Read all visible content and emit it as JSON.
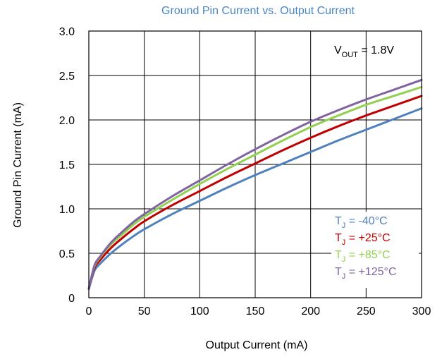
{
  "chart_data": {
    "type": "line",
    "title": "Ground Pin Current vs. Output Current",
    "xlabel": "Output Current (mA)",
    "ylabel": "Ground Pin Current (mA)",
    "xlim": [
      0,
      300
    ],
    "ylim": [
      0,
      3.0
    ],
    "x_ticks": [
      "0",
      "50",
      "100",
      "150",
      "200",
      "250",
      "300"
    ],
    "y_ticks": [
      "0",
      "0.5",
      "1.0",
      "1.5",
      "2.0",
      "2.5",
      "3.0"
    ],
    "grid": true,
    "annotation": {
      "main": "V",
      "sub": "OUT",
      "rest": " = 1.8V"
    },
    "legend_position": "bottom-right",
    "x": [
      0,
      5,
      10,
      20,
      30,
      40,
      50,
      75,
      100,
      125,
      150,
      175,
      200,
      225,
      250,
      275,
      300
    ],
    "series": [
      {
        "name": "T",
        "sub": "J",
        "label_rest": " = -40°C",
        "color": "#4f81bd",
        "values": [
          0.1,
          0.3,
          0.38,
          0.5,
          0.6,
          0.69,
          0.77,
          0.94,
          1.09,
          1.24,
          1.38,
          1.51,
          1.64,
          1.77,
          1.89,
          2.01,
          2.13
        ]
      },
      {
        "name": "T",
        "sub": "J",
        "label_rest": " = +25°C",
        "color": "#c00000",
        "values": [
          0.1,
          0.33,
          0.42,
          0.56,
          0.67,
          0.77,
          0.86,
          1.04,
          1.2,
          1.36,
          1.51,
          1.66,
          1.8,
          1.93,
          2.05,
          2.16,
          2.27
        ]
      },
      {
        "name": "T",
        "sub": "J",
        "label_rest": " = +85°C",
        "color": "#92d050",
        "values": [
          0.1,
          0.35,
          0.45,
          0.6,
          0.71,
          0.82,
          0.91,
          1.1,
          1.28,
          1.45,
          1.61,
          1.77,
          1.92,
          2.05,
          2.17,
          2.27,
          2.37
        ]
      },
      {
        "name": "T",
        "sub": "J",
        "label_rest": " = +125°C",
        "color": "#8064a2",
        "values": [
          0.1,
          0.36,
          0.46,
          0.62,
          0.74,
          0.85,
          0.94,
          1.14,
          1.32,
          1.5,
          1.67,
          1.83,
          1.98,
          2.11,
          2.23,
          2.34,
          2.45
        ]
      }
    ]
  }
}
